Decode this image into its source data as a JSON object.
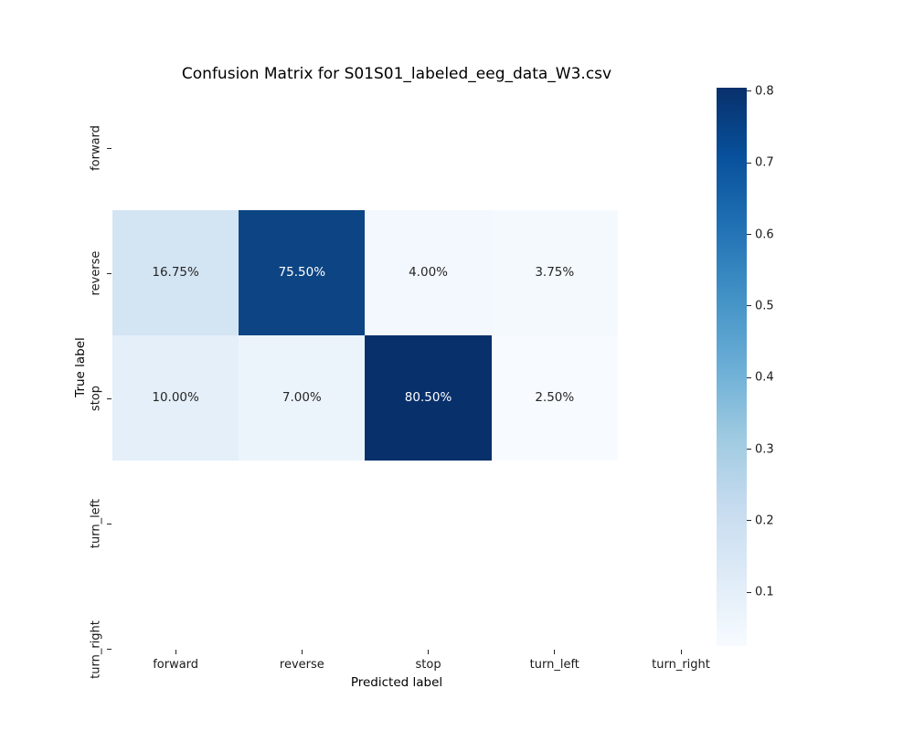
{
  "chart_data": {
    "type": "heatmap",
    "title": "Confusion Matrix for S01S01_labeled_eeg_data_W3.csv",
    "xlabel": "Predicted label",
    "ylabel": "True label",
    "x_categories": [
      "forward",
      "reverse",
      "stop",
      "turn_left",
      "turn_right"
    ],
    "y_categories": [
      "forward",
      "reverse",
      "stop",
      "turn_left",
      "turn_right"
    ],
    "matrix": [
      [
        null,
        null,
        null,
        null,
        null
      ],
      [
        0.1675,
        0.755,
        0.04,
        0.0375,
        null
      ],
      [
        0.1,
        0.07,
        0.805,
        0.025,
        null
      ],
      [
        null,
        null,
        null,
        null,
        null
      ],
      [
        null,
        null,
        null,
        null,
        null
      ]
    ],
    "cells": [
      {
        "row": 1,
        "col": 0,
        "value": 0.1675,
        "label": "16.75%",
        "bg": "#d3e4f3",
        "fg": "#262626"
      },
      {
        "row": 1,
        "col": 1,
        "value": 0.755,
        "label": "75.50%",
        "bg": "#0d4584",
        "fg": "#ffffff"
      },
      {
        "row": 1,
        "col": 2,
        "value": 0.04,
        "label": "4.00%",
        "bg": "#f3f8fe",
        "fg": "#262626"
      },
      {
        "row": 1,
        "col": 3,
        "value": 0.0375,
        "label": "3.75%",
        "bg": "#f4f9fe",
        "fg": "#262626"
      },
      {
        "row": 2,
        "col": 0,
        "value": 0.1,
        "label": "10.00%",
        "bg": "#e4eff9",
        "fg": "#262626"
      },
      {
        "row": 2,
        "col": 1,
        "value": 0.07,
        "label": "7.00%",
        "bg": "#ecf4fb",
        "fg": "#262626"
      },
      {
        "row": 2,
        "col": 2,
        "value": 0.805,
        "label": "80.50%",
        "bg": "#08306b",
        "fg": "#ffffff"
      },
      {
        "row": 2,
        "col": 3,
        "value": 0.025,
        "label": "2.50%",
        "bg": "#f7fbff",
        "fg": "#262626"
      }
    ],
    "colorbar": {
      "colormap": "Blues",
      "vmin": 0.025,
      "vmax": 0.805,
      "ticks": [
        0.1,
        0.2,
        0.3,
        0.4,
        0.5,
        0.6,
        0.7,
        0.8
      ],
      "tick_labels": [
        "0.1",
        "0.2",
        "0.3",
        "0.4",
        "0.5",
        "0.6",
        "0.7",
        "0.8"
      ],
      "gradient_stops": [
        "#f7fbff",
        "#deebf7",
        "#c6dbef",
        "#9ecae1",
        "#6baed6",
        "#4292c6",
        "#2171b5",
        "#08519c",
        "#08306b"
      ]
    },
    "colors": {
      "background": "#ffffff",
      "tick_text": "#1a1a1a",
      "title_text": "#000000"
    },
    "legend_position": "right-colorbar",
    "grid": false
  }
}
